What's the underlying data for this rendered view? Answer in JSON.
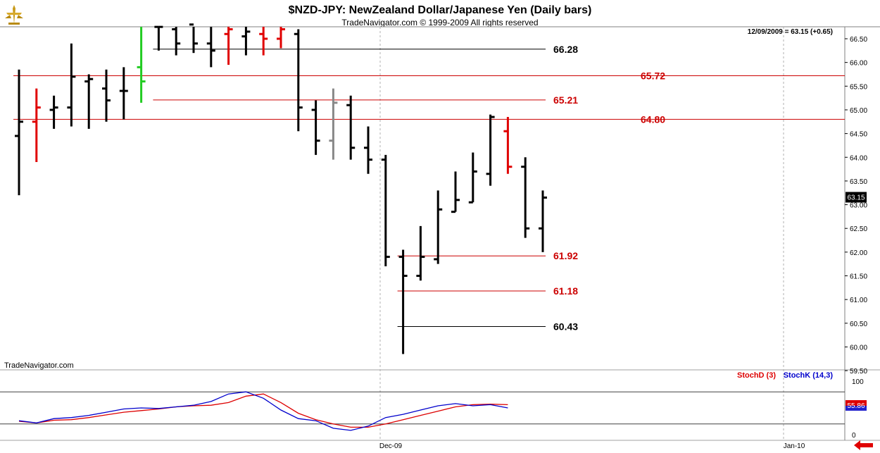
{
  "header": {
    "title": "$NZD-JPY:  NewZealand Dollar/Japanese Yen  (Daily bars)",
    "subtitle": "TradeNavigator.com © 1999-2009 All rights reserved",
    "last_price_readout": "12/09/2009 = 63.15 (+0.65)",
    "watermark": "TradeNavigator.com"
  },
  "colors": {
    "up": "#000000",
    "down_red": "#e00000",
    "green": "#22cc22",
    "gray": "#888888",
    "level_red": "#cc0000",
    "level_black": "#000000",
    "stoch_d": "#dd0000",
    "stoch_k": "#0000cc",
    "arrow": "#e00000"
  },
  "chart_data": [
    {
      "type": "ohlc",
      "title": "$NZD-JPY:  NewZealand Dollar/Japanese Yen  (Daily bars)",
      "ylim": [
        59.5,
        66.75
      ],
      "y_ticks": [
        "59.50",
        "60.00",
        "60.50",
        "61.00",
        "61.50",
        "62.00",
        "62.50",
        "63.00",
        "63.50",
        "64.00",
        "64.50",
        "65.00",
        "65.50",
        "66.00",
        "66.50"
      ],
      "x_labels": [
        "Dec-09",
        "Jan-10"
      ],
      "last_price_label": "63.15",
      "bars": [
        {
          "o": 64.45,
          "h": 65.85,
          "l": 63.2,
          "c": 64.75,
          "color": "black"
        },
        {
          "o": 64.75,
          "h": 65.45,
          "l": 63.9,
          "c": 65.05,
          "color": "red"
        },
        {
          "o": 65.0,
          "h": 65.3,
          "l": 64.6,
          "c": 65.05,
          "color": "black"
        },
        {
          "o": 65.05,
          "h": 66.4,
          "l": 64.65,
          "c": 65.7,
          "color": "black"
        },
        {
          "o": 65.6,
          "h": 65.75,
          "l": 64.6,
          "c": 65.65,
          "color": "black"
        },
        {
          "o": 65.45,
          "h": 65.85,
          "l": 64.75,
          "c": 65.2,
          "color": "black"
        },
        {
          "o": 65.4,
          "h": 65.9,
          "l": 64.8,
          "c": 65.4,
          "color": "black"
        },
        {
          "o": 65.9,
          "h": 66.75,
          "l": 65.15,
          "c": 65.6,
          "color": "green"
        },
        {
          "o": 66.75,
          "h": 66.8,
          "l": 66.25,
          "c": 66.75,
          "color": "black"
        },
        {
          "o": 66.7,
          "h": 66.75,
          "l": 66.15,
          "c": 66.4,
          "color": "black"
        },
        {
          "o": 66.8,
          "h": 66.8,
          "l": 66.2,
          "c": 66.4,
          "color": "black"
        },
        {
          "o": 66.4,
          "h": 66.75,
          "l": 65.9,
          "c": 66.25,
          "color": "black"
        },
        {
          "o": 66.6,
          "h": 66.8,
          "l": 65.95,
          "c": 66.7,
          "color": "red"
        },
        {
          "o": 66.55,
          "h": 66.8,
          "l": 66.15,
          "c": 66.65,
          "color": "black"
        },
        {
          "o": 66.6,
          "h": 66.8,
          "l": 66.15,
          "c": 66.5,
          "color": "red"
        },
        {
          "o": 66.5,
          "h": 66.8,
          "l": 66.3,
          "c": 66.7,
          "color": "red"
        },
        {
          "o": 66.6,
          "h": 66.7,
          "l": 64.55,
          "c": 65.05,
          "color": "black"
        },
        {
          "o": 65.0,
          "h": 65.2,
          "l": 64.05,
          "c": 64.35,
          "color": "black"
        },
        {
          "o": 64.35,
          "h": 65.45,
          "l": 63.95,
          "c": 65.15,
          "color": "gray"
        },
        {
          "o": 65.1,
          "h": 65.3,
          "l": 63.95,
          "c": 64.2,
          "color": "black"
        },
        {
          "o": 64.2,
          "h": 64.65,
          "l": 63.65,
          "c": 63.95,
          "color": "black"
        },
        {
          "o": 63.95,
          "h": 64.05,
          "l": 61.7,
          "c": 61.9,
          "color": "black"
        },
        {
          "o": 61.9,
          "h": 62.05,
          "l": 59.85,
          "c": 61.5,
          "color": "black"
        },
        {
          "o": 61.5,
          "h": 62.55,
          "l": 61.4,
          "c": 61.9,
          "color": "black"
        },
        {
          "o": 61.85,
          "h": 63.3,
          "l": 61.75,
          "c": 62.9,
          "color": "black"
        },
        {
          "o": 62.85,
          "h": 63.7,
          "l": 62.85,
          "c": 63.1,
          "color": "black"
        },
        {
          "o": 63.05,
          "h": 64.1,
          "l": 63.05,
          "c": 63.7,
          "color": "black"
        },
        {
          "o": 63.65,
          "h": 64.9,
          "l": 63.4,
          "c": 64.85,
          "color": "black"
        },
        {
          "o": 64.55,
          "h": 64.85,
          "l": 63.65,
          "c": 63.8,
          "color": "red"
        },
        {
          "o": 63.8,
          "h": 64.0,
          "l": 62.3,
          "c": 62.5,
          "color": "black"
        },
        {
          "o": 62.5,
          "h": 63.3,
          "l": 62.0,
          "c": 63.15,
          "color": "black"
        }
      ],
      "levels": [
        {
          "value": 66.28,
          "label": "66.28",
          "color": "black",
          "start_bar": 8,
          "end": "label_mid"
        },
        {
          "value": 65.72,
          "label": "65.72",
          "color": "red",
          "start_bar": 0,
          "end": "plot_right"
        },
        {
          "value": 65.21,
          "label": "65.21",
          "color": "red",
          "start_bar": 8,
          "end": "label_mid"
        },
        {
          "value": 64.8,
          "label": "64.80",
          "color": "red",
          "start_bar": 0,
          "end": "plot_right"
        },
        {
          "value": 61.92,
          "label": "61.92",
          "color": "red",
          "start_bar": 22,
          "end": "label_mid"
        },
        {
          "value": 61.18,
          "label": "61.18",
          "color": "red",
          "start_bar": 22,
          "end": "label_mid"
        },
        {
          "value": 60.43,
          "label": "60.43",
          "color": "black",
          "start_bar": 22,
          "end": "label_mid"
        }
      ]
    },
    {
      "type": "line",
      "title": "Stochastic",
      "ylim": [
        0,
        100
      ],
      "y_ticks": [
        "0",
        "100"
      ],
      "reference_lines": [
        20,
        80
      ],
      "last_value_label": "55.86",
      "series": [
        {
          "name": "StochD (3)",
          "color": "red",
          "values": [
            25,
            22,
            27,
            28,
            32,
            37,
            42,
            45,
            48,
            52,
            54,
            55,
            60,
            72,
            76,
            60,
            40,
            28,
            20,
            14,
            14,
            20,
            28,
            36,
            44,
            52,
            56,
            57,
            56
          ]
        },
        {
          "name": "StochK (14,3)",
          "color": "blue",
          "values": [
            26,
            22,
            30,
            32,
            36,
            42,
            48,
            50,
            49,
            52,
            55,
            62,
            76,
            80,
            68,
            46,
            30,
            26,
            12,
            8,
            16,
            32,
            38,
            46,
            54,
            58,
            54,
            56,
            50
          ]
        }
      ]
    }
  ]
}
